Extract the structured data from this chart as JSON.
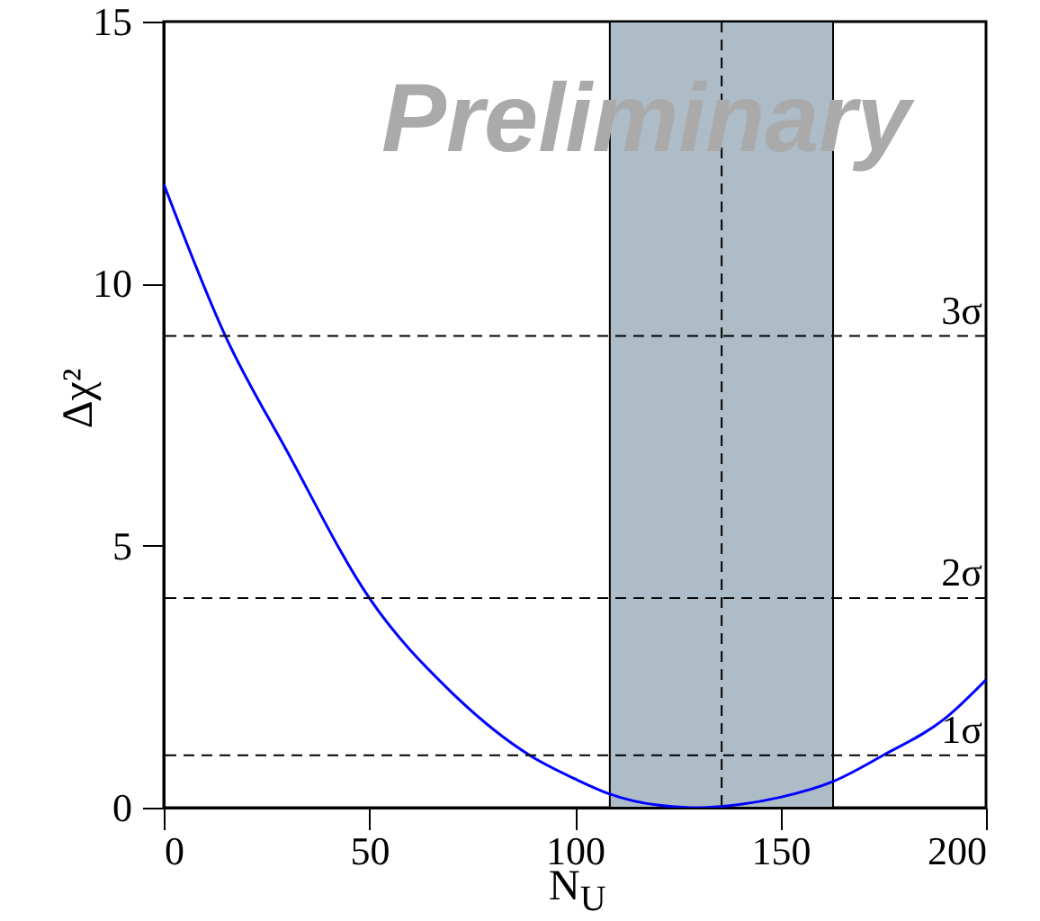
{
  "chart_data": {
    "type": "line",
    "xlabel": "N$_{U}$",
    "ylabel": "Δχ²",
    "annotations": [
      "Preliminary"
    ],
    "x": [
      0,
      15,
      30,
      50,
      70,
      89,
      100,
      108.5,
      120,
      130,
      140,
      150,
      162.8,
      175,
      190,
      200
    ],
    "series": [
      {
        "color": "#0000ff",
        "values": [
          11.9,
          9,
          6.8,
          4,
          2.2,
          1,
          0.55,
          0.26,
          0.05,
          0,
          0.06,
          0.2,
          0.5,
          1,
          1.7,
          2.44
        ]
      }
    ],
    "xlim": [
      0,
      200
    ],
    "xticks": [
      0,
      50,
      100,
      150,
      200
    ],
    "ylim": [
      0,
      15
    ],
    "yticks": [
      0,
      5,
      10,
      15
    ],
    "ref_lines": [
      {
        "axis": "y",
        "value": 1,
        "label": "1σ"
      },
      {
        "axis": "y",
        "value": 4,
        "label": "2σ"
      },
      {
        "axis": "y",
        "value": 9,
        "label": "3σ"
      },
      {
        "axis": "x",
        "value": 135.7,
        "label": null
      }
    ],
    "bands": [
      {
        "axis": "x",
        "from": 108.5,
        "to": 162.8,
        "label": null,
        "color": "#adbcc7"
      }
    ],
    "line_style": "solid",
    "grid": false
  }
}
